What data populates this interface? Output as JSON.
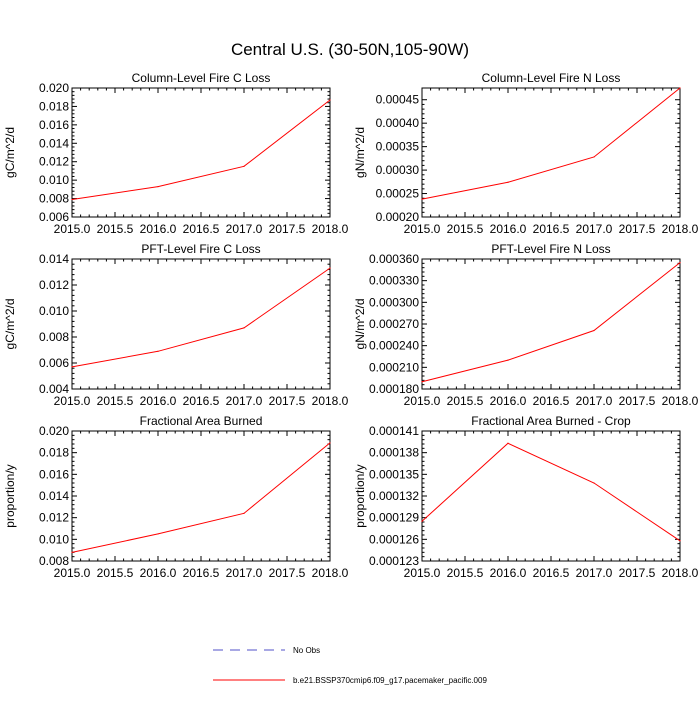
{
  "figure_title": "Central U.S. (30-50N,105-90W)",
  "colors": {
    "model": "#ff0000",
    "obs": "#5050c8",
    "axis": "#000000"
  },
  "legend": {
    "obs_label": "No Obs",
    "model_label": "b.e21.BSSP370cmip6.f09_g17.pacemaker_pacific.009"
  },
  "chart_data": [
    {
      "type": "line",
      "title": "Column-Level Fire C Loss",
      "xlabel": "",
      "ylabel": "gC/m^2/d",
      "xlim": [
        2015.0,
        2018.0
      ],
      "ylim": [
        0.006,
        0.02
      ],
      "xticks": [
        2015.0,
        2015.5,
        2016.0,
        2016.5,
        2017.0,
        2017.5,
        2018.0
      ],
      "xticklabels": [
        "2015.0",
        "2015.5",
        "2016.0",
        "2016.5",
        "2017.0",
        "2017.5",
        "2018.0"
      ],
      "yticks": [
        0.006,
        0.008,
        0.01,
        0.012,
        0.014,
        0.016,
        0.018,
        0.02
      ],
      "yticklabels": [
        "0.006",
        "0.008",
        "0.010",
        "0.012",
        "0.014",
        "0.016",
        "0.018",
        "0.020"
      ],
      "series": [
        {
          "name": "b.e21.BSSP370cmip6.f09_g17.pacemaker_pacific.009",
          "x": [
            2015,
            2016,
            2017,
            2018
          ],
          "values": [
            0.0079,
            0.0093,
            0.0115,
            0.0187
          ]
        }
      ]
    },
    {
      "type": "line",
      "title": "Column-Level Fire N Loss",
      "xlabel": "",
      "ylabel": "gN/m^2/d",
      "xlim": [
        2015.0,
        2018.0
      ],
      "ylim": [
        0.0002,
        0.000475
      ],
      "xticks": [
        2015.0,
        2015.5,
        2016.0,
        2016.5,
        2017.0,
        2017.5,
        2018.0
      ],
      "xticklabels": [
        "2015.0",
        "2015.5",
        "2016.0",
        "2016.5",
        "2017.0",
        "2017.5",
        "2018.0"
      ],
      "yticks": [
        0.0002,
        0.00025,
        0.0003,
        0.00035,
        0.0004,
        0.00045
      ],
      "yticklabels": [
        "0.00020",
        "0.00025",
        "0.00030",
        "0.00035",
        "0.00040",
        "0.00045"
      ],
      "series": [
        {
          "name": "b.e21.BSSP370cmip6.f09_g17.pacemaker_pacific.009",
          "x": [
            2015,
            2016,
            2017,
            2018
          ],
          "values": [
            0.000238,
            0.000274,
            0.000328,
            0.000475
          ]
        }
      ]
    },
    {
      "type": "line",
      "title": "PFT-Level Fire C Loss",
      "xlabel": "",
      "ylabel": "gC/m^2/d",
      "xlim": [
        2015.0,
        2018.0
      ],
      "ylim": [
        0.004,
        0.014
      ],
      "xticks": [
        2015.0,
        2015.5,
        2016.0,
        2016.5,
        2017.0,
        2017.5,
        2018.0
      ],
      "xticklabels": [
        "2015.0",
        "2015.5",
        "2016.0",
        "2016.5",
        "2017.0",
        "2017.5",
        "2018.0"
      ],
      "yticks": [
        0.004,
        0.006,
        0.008,
        0.01,
        0.012,
        0.014
      ],
      "yticklabels": [
        "0.004",
        "0.006",
        "0.008",
        "0.010",
        "0.012",
        "0.014"
      ],
      "series": [
        {
          "name": "b.e21.BSSP370cmip6.f09_g17.pacemaker_pacific.009",
          "x": [
            2015,
            2016,
            2017,
            2018
          ],
          "values": [
            0.0057,
            0.0069,
            0.0087,
            0.0133
          ]
        }
      ]
    },
    {
      "type": "line",
      "title": "PFT-Level Fire N Loss",
      "xlabel": "",
      "ylabel": "gN/m^2/d",
      "xlim": [
        2015.0,
        2018.0
      ],
      "ylim": [
        0.00018,
        0.00036
      ],
      "xticks": [
        2015.0,
        2015.5,
        2016.0,
        2016.5,
        2017.0,
        2017.5,
        2018.0
      ],
      "xticklabels": [
        "2015.0",
        "2015.5",
        "2016.0",
        "2016.5",
        "2017.0",
        "2017.5",
        "2018.0"
      ],
      "yticks": [
        0.00018,
        0.00021,
        0.00024,
        0.00027,
        0.0003,
        0.00033,
        0.00036
      ],
      "yticklabels": [
        "0.000180",
        "0.000210",
        "0.000240",
        "0.000270",
        "0.000300",
        "0.000330",
        "0.000360"
      ],
      "series": [
        {
          "name": "b.e21.BSSP370cmip6.f09_g17.pacemaker_pacific.009",
          "x": [
            2015,
            2016,
            2017,
            2018
          ],
          "values": [
            0.00019,
            0.00022,
            0.000261,
            0.000355
          ]
        }
      ]
    },
    {
      "type": "line",
      "title": "Fractional Area Burned",
      "xlabel": "",
      "ylabel": "proportion/y",
      "xlim": [
        2015.0,
        2018.0
      ],
      "ylim": [
        0.008,
        0.02
      ],
      "xticks": [
        2015.0,
        2015.5,
        2016.0,
        2016.5,
        2017.0,
        2017.5,
        2018.0
      ],
      "xticklabels": [
        "2015.0",
        "2015.5",
        "2016.0",
        "2016.5",
        "2017.0",
        "2017.5",
        "2018.0"
      ],
      "yticks": [
        0.008,
        0.01,
        0.012,
        0.014,
        0.016,
        0.018,
        0.02
      ],
      "yticklabels": [
        "0.008",
        "0.010",
        "0.012",
        "0.014",
        "0.016",
        "0.018",
        "0.020"
      ],
      "series": [
        {
          "name": "b.e21.BSSP370cmip6.f09_g17.pacemaker_pacific.009",
          "x": [
            2015,
            2016,
            2017,
            2018
          ],
          "values": [
            0.0088,
            0.0105,
            0.0124,
            0.0189
          ]
        }
      ]
    },
    {
      "type": "line",
      "title": "Fractional Area Burned - Crop",
      "xlabel": "",
      "ylabel": "proportion/y",
      "xlim": [
        2015.0,
        2018.0
      ],
      "ylim": [
        0.000123,
        0.000141
      ],
      "xticks": [
        2015.0,
        2015.5,
        2016.0,
        2016.5,
        2017.0,
        2017.5,
        2018.0
      ],
      "xticklabels": [
        "2015.0",
        "2015.5",
        "2016.0",
        "2016.5",
        "2017.0",
        "2017.5",
        "2018.0"
      ],
      "yticks": [
        0.000123,
        0.000126,
        0.000129,
        0.000132,
        0.000135,
        0.000138,
        0.000141
      ],
      "yticklabels": [
        "0.000123",
        "0.000126",
        "0.000129",
        "0.000132",
        "0.000135",
        "0.000138",
        "0.000141"
      ],
      "series": [
        {
          "name": "b.e21.BSSP370cmip6.f09_g17.pacemaker_pacific.009",
          "x": [
            2015,
            2016,
            2017,
            2018
          ],
          "values": [
            0.0001285,
            0.0001393,
            0.0001338,
            0.0001258
          ]
        }
      ]
    }
  ]
}
